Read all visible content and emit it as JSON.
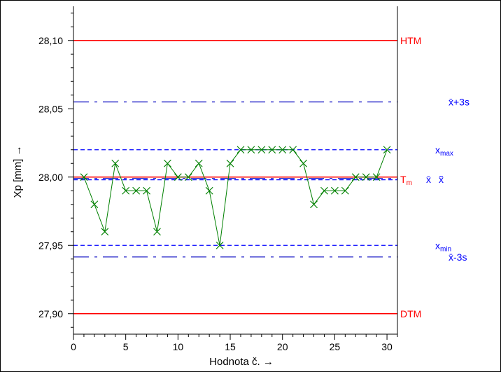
{
  "chart_data": {
    "type": "line",
    "xlabel": "Hodnota č. →",
    "ylabel": "Xp [mm] →",
    "xlim": [
      0,
      31
    ],
    "ylim": [
      27.885,
      28.125
    ],
    "x_ticks": [
      0,
      5,
      10,
      15,
      20,
      25,
      30
    ],
    "x_tick_labels": [
      "0",
      "5",
      "10",
      "15",
      "20",
      "25",
      "30"
    ],
    "y_ticks": [
      27.9,
      27.95,
      28.0,
      28.05,
      28.1
    ],
    "y_tick_labels": [
      "27,90",
      "27,95",
      "28,00",
      "28,05",
      "28,10"
    ],
    "grid": false,
    "series": [
      {
        "x": [
          1,
          2,
          3,
          4,
          5,
          6,
          7,
          8,
          9,
          10,
          11,
          12,
          13,
          14,
          15,
          16,
          17,
          18,
          19,
          20,
          21,
          22,
          23,
          24,
          25,
          26,
          27,
          28,
          29,
          30
        ],
        "values": [
          28.0,
          27.98,
          27.96,
          28.01,
          27.99,
          27.99,
          27.99,
          27.96,
          28.01,
          28.0,
          28.0,
          28.01,
          27.99,
          27.95,
          28.01,
          28.02,
          28.02,
          28.02,
          28.02,
          28.02,
          28.02,
          28.01,
          27.98,
          27.99,
          27.99,
          27.99,
          28.0,
          28.0,
          28.0,
          28.02
        ],
        "color": "#008000",
        "marker": "x"
      }
    ],
    "reference_lines": [
      {
        "label": "HTM",
        "value": 28.1,
        "color": "#ff0000",
        "style": "solid"
      },
      {
        "label": "x̄+3s",
        "value": 28.055,
        "color": "#0000c0",
        "style": "dashdot"
      },
      {
        "label": "xmax",
        "label_main": "x",
        "label_sub": "max",
        "value": 28.02,
        "color": "#0000ff",
        "style": "dashed"
      },
      {
        "label": "Tm",
        "label_main": "T",
        "label_sub": "m",
        "value": 28.0,
        "color": "#ff0000",
        "style": "solid"
      },
      {
        "label": "x̄",
        "value": 27.999,
        "color": "#0000c0",
        "style": "dashdot"
      },
      {
        "label": "x̃",
        "value": 27.998,
        "color": "#0000ff",
        "style": "dashed"
      },
      {
        "label": "xmin",
        "label_main": "x",
        "label_sub": "min",
        "value": 27.95,
        "color": "#0000ff",
        "style": "dashed"
      },
      {
        "label": "x̄-3s",
        "value": 27.9415,
        "color": "#0000c0",
        "style": "dashdot"
      },
      {
        "label": "DTM",
        "value": 27.9,
        "color": "#ff0000",
        "style": "solid"
      }
    ]
  }
}
